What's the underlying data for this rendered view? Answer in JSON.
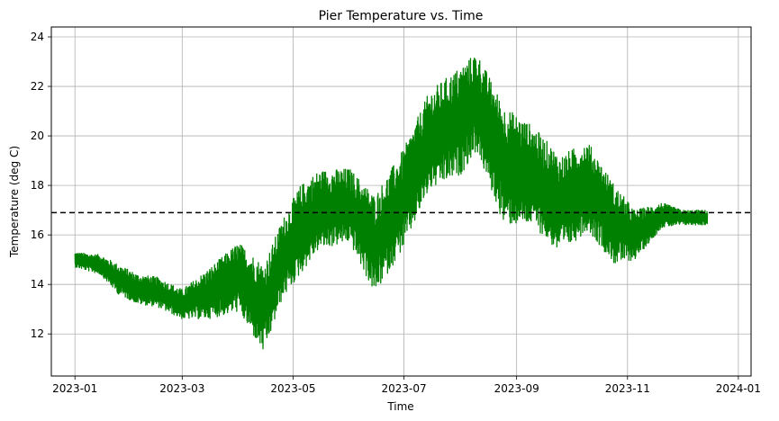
{
  "chart_data": {
    "type": "line",
    "title": "Pier Temperature vs. Time",
    "xlabel": "Time",
    "ylabel": "Temperature (deg C)",
    "x_ticks": [
      "2023-01",
      "2023-03",
      "2023-05",
      "2023-07",
      "2023-09",
      "2023-11",
      "2024-01"
    ],
    "y_ticks": [
      "12",
      "14",
      "16",
      "18",
      "20",
      "22",
      "24"
    ],
    "xlim": [
      "2022-12-19",
      "2024-01-08"
    ],
    "ylim": [
      10.3,
      24.4
    ],
    "grid": true,
    "colors": {
      "series": "#008000",
      "reference": "#000000",
      "grid": "#b0b0b0"
    },
    "series": [
      {
        "style": "solid",
        "x": [
          "2023-01-01",
          "2023-01-15",
          "2023-01-25",
          "2023-02-05",
          "2023-02-15",
          "2023-03-01",
          "2023-03-15",
          "2023-04-01",
          "2023-04-15",
          "2023-04-25",
          "2023-05-05",
          "2023-05-15",
          "2023-06-01",
          "2023-06-15",
          "2023-07-01",
          "2023-07-15",
          "2023-08-01",
          "2023-08-10",
          "2023-08-25",
          "2023-09-10",
          "2023-09-25",
          "2023-10-10",
          "2023-10-25",
          "2023-11-05",
          "2023-11-20",
          "2023-12-01",
          "2023-12-15"
        ],
        "y": [
          15.0,
          14.8,
          14.2,
          13.8,
          13.7,
          13.2,
          13.6,
          14.3,
          13.0,
          15.0,
          16.2,
          17.0,
          17.2,
          15.6,
          17.5,
          19.8,
          20.6,
          21.4,
          18.8,
          18.4,
          17.2,
          18.0,
          16.4,
          16.0,
          16.8,
          16.7,
          16.7
        ],
        "band": [
          0.3,
          0.4,
          0.6,
          0.6,
          0.6,
          0.6,
          1.0,
          1.4,
          1.8,
          1.6,
          1.8,
          1.6,
          1.5,
          2.0,
          2.0,
          2.0,
          2.2,
          2.0,
          2.4,
          2.0,
          2.0,
          1.8,
          1.6,
          1.0,
          0.5,
          0.3,
          0.3
        ]
      },
      {
        "style": "dashed",
        "values": [
          16.9
        ]
      }
    ]
  }
}
